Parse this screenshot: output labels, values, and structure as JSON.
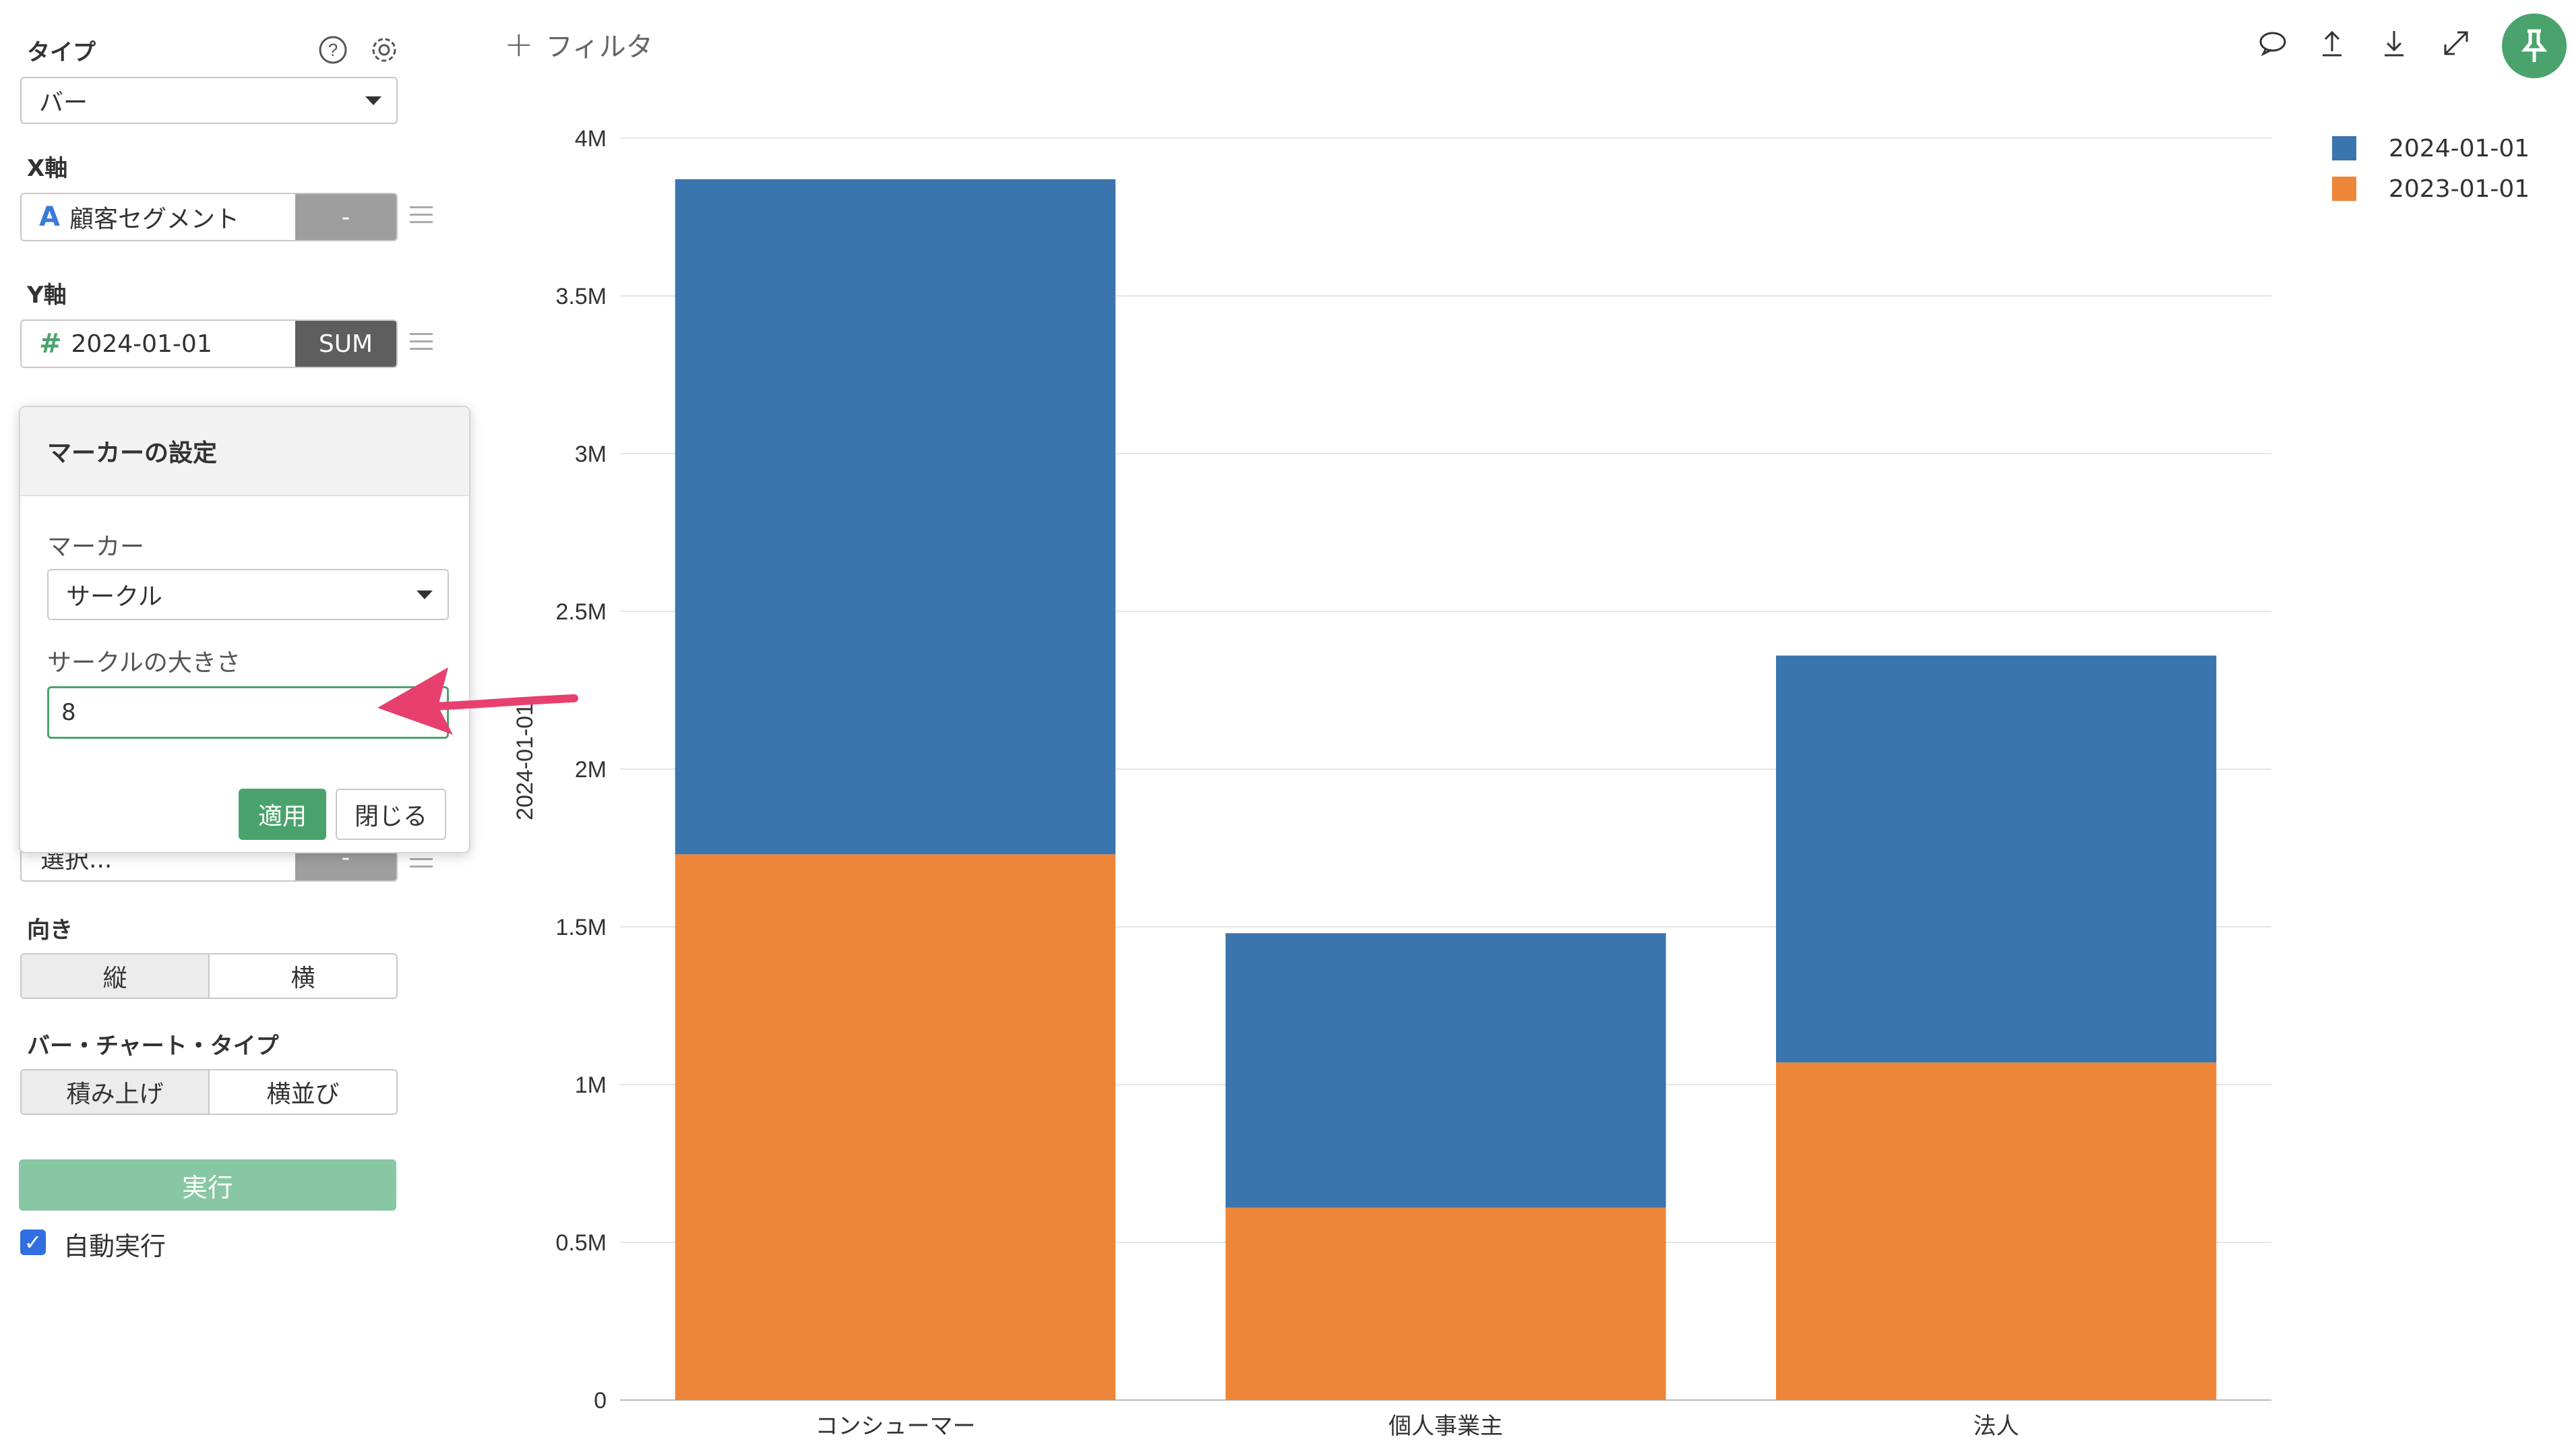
{
  "sidebar": {
    "type_label": "タイプ",
    "type_value": "バー",
    "x_label": "X軸",
    "x_field": {
      "icon": "A",
      "name": "顧客セグメント",
      "agg": "-"
    },
    "y_label": "Y軸",
    "y_field": {
      "icon": "#",
      "name": "2024-01-01",
      "agg": "SUM"
    },
    "hidden_field": {
      "name": "選択...",
      "agg": "-"
    },
    "orientation_label": "向き",
    "orientation_options": [
      "縦",
      "横"
    ],
    "bartype_label": "バー・チャート・タイプ",
    "bartype_options": [
      "積み上げ",
      "横並び"
    ],
    "run_label": "実行",
    "auto_run_label": "自動実行"
  },
  "popover": {
    "title": "マーカーの設定",
    "marker_label": "マーカー",
    "marker_value": "サークル",
    "size_label": "サークルの大きさ",
    "size_value": "8",
    "apply_label": "適用",
    "close_label": "閉じる"
  },
  "topbar": {
    "filter_label": "フィルタ"
  },
  "colors": {
    "accent": "#4aa36c",
    "series_2024": "#3b75ad",
    "series_2023": "#ee8639",
    "annotation_arrow": "#e8406e"
  },
  "chart_data": {
    "type": "bar",
    "stacked": true,
    "categories": [
      "コンシューマー",
      "個人事業主",
      "法人"
    ],
    "series": [
      {
        "name": "2023-01-01",
        "values": [
          1730000,
          610000,
          1070000
        ]
      },
      {
        "name": "2024-01-01",
        "values": [
          2140000,
          870000,
          1290000
        ]
      }
    ],
    "ylabel": "2024-01-01",
    "ylim": [
      0,
      4000000
    ],
    "yticks": [
      "0",
      "0.5M",
      "1M",
      "1.5M",
      "2M",
      "2.5M",
      "3M",
      "3.5M",
      "4M"
    ],
    "ytick_values": [
      0,
      500000,
      1000000,
      1500000,
      2000000,
      2500000,
      3000000,
      3500000,
      4000000
    ],
    "legend": [
      "2024-01-01",
      "2023-01-01"
    ],
    "legend_position": "top-right",
    "grid": true
  }
}
